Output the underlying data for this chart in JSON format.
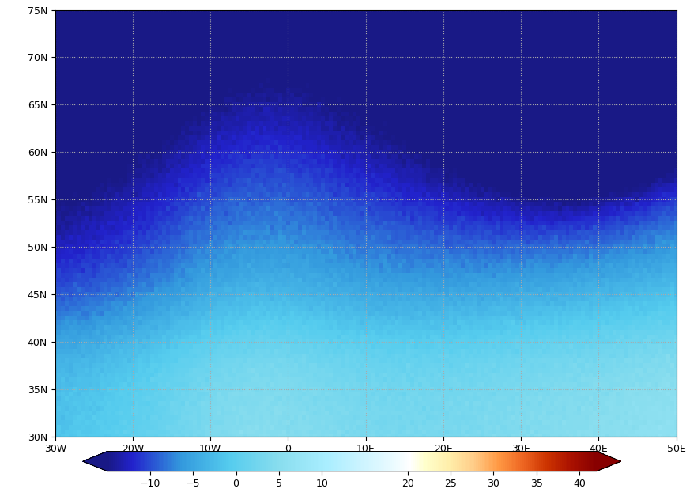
{
  "title": "",
  "lon_min": -30,
  "lon_max": 50,
  "lat_min": 30,
  "lat_max": 75,
  "xticks": [
    -30,
    -20,
    -10,
    0,
    10,
    20,
    30,
    40,
    50
  ],
  "yticks": [
    30,
    35,
    40,
    45,
    50,
    55,
    60,
    65,
    70,
    75
  ],
  "xlabel_format": "{deg}{dir}",
  "colorbar_ticks": [
    -10,
    -5,
    0,
    5,
    10,
    20,
    25,
    30,
    35,
    40
  ],
  "vmin": -15,
  "vmax": 42,
  "colormap_colors": [
    [
      0,
      "#191986"
    ],
    [
      0.05,
      "#2222cc"
    ],
    [
      0.15,
      "#3399dd"
    ],
    [
      0.25,
      "#55ccee"
    ],
    [
      0.35,
      "#88ddee"
    ],
    [
      0.45,
      "#aaeeff"
    ],
    [
      0.52,
      "#ccf4ff"
    ],
    [
      0.58,
      "#e8faff"
    ],
    [
      0.62,
      "#ffffff"
    ],
    [
      0.65,
      "#ffffcc"
    ],
    [
      0.7,
      "#ffeeaa"
    ],
    [
      0.75,
      "#ffcc88"
    ],
    [
      0.8,
      "#ff9944"
    ],
    [
      0.85,
      "#ee6622"
    ],
    [
      0.9,
      "#cc3300"
    ],
    [
      0.95,
      "#aa1100"
    ],
    [
      1.0,
      "#880000"
    ]
  ],
  "background_color": "#ffffff",
  "grid_color": "#aaaaaa",
  "grid_linestyle": ":",
  "grid_linewidth": 0.8,
  "land_color": "#ffffff",
  "ocean_color": "#ffffff",
  "coast_color": "#555555",
  "coast_linewidth": 0.6,
  "tick_fontsize": 9,
  "colorbar_fontsize": 9,
  "figsize": [
    8.73,
    6.27
  ],
  "dpi": 100
}
